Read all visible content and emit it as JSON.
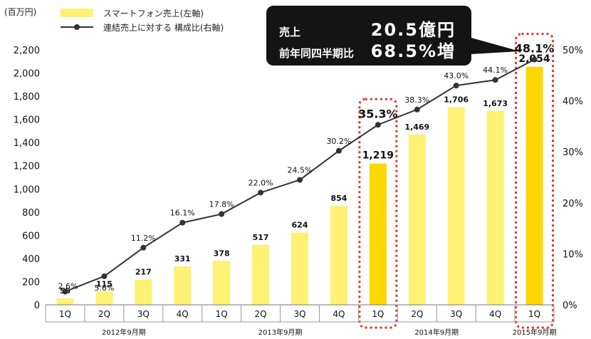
{
  "unit_label": "(百万円)",
  "legend": {
    "bar_label": "スマートフォン売上(左軸)",
    "line_label": "連結売上に対する 構成比(右軸)"
  },
  "callout": {
    "row1_label": "売上",
    "row1_value": "20.5億円",
    "row2_label": "前年同四半期比",
    "row2_value": "68.5%増"
  },
  "colors": {
    "bar": "#fff173",
    "bar_highlight": "#ffd700",
    "line": "#333333",
    "highlight_border": "#e0342a",
    "callout_bg": "#141414"
  },
  "chart_data": {
    "type": "bar",
    "categories": [
      "1Q",
      "2Q",
      "3Q",
      "4Q",
      "1Q",
      "2Q",
      "3Q",
      "4Q",
      "1Q",
      "2Q",
      "3Q",
      "4Q",
      "1Q"
    ],
    "groups": [
      {
        "label": "2012年9月期",
        "start": 0,
        "end": 3
      },
      {
        "label": "2013年9月期",
        "start": 4,
        "end": 7
      },
      {
        "label": "2014年9月期",
        "start": 8,
        "end": 11
      },
      {
        "label": "2015年9月期",
        "start": 12,
        "end": 12
      }
    ],
    "series": [
      {
        "name": "スマートフォン売上(左軸)",
        "type": "bar",
        "axis": "left",
        "values": [
          55,
          115,
          217,
          331,
          378,
          517,
          624,
          854,
          1219,
          1469,
          1706,
          1673,
          2054
        ],
        "labels": [
          "55",
          "115",
          "217",
          "331",
          "378",
          "517",
          "624",
          "854",
          "1,219",
          "1,469",
          "1,706",
          "1,673",
          "2,054"
        ]
      },
      {
        "name": "連結売上に対する 構成比(右軸)",
        "type": "line",
        "axis": "right",
        "values": [
          2.6,
          5.6,
          11.2,
          16.1,
          17.8,
          22.0,
          24.5,
          30.2,
          35.3,
          38.3,
          43.0,
          44.1,
          48.1
        ],
        "labels": [
          "2.6%",
          "5.6%",
          "11.2%",
          "16.1%",
          "17.8%",
          "22.0%",
          "24.5%",
          "30.2%",
          "35.3%",
          "38.3%",
          "43.0%",
          "44.1%",
          "48.1%"
        ]
      }
    ],
    "highlight_indices": [
      8,
      12
    ],
    "y_left": {
      "min": 0,
      "max": 2200,
      "ticks": [
        0,
        200,
        400,
        600,
        800,
        1000,
        1200,
        1400,
        1600,
        1800,
        2000,
        2200
      ],
      "tick_labels": [
        "0",
        "200",
        "400",
        "600",
        "800",
        "1,000",
        "1,200",
        "1,400",
        "1,600",
        "1,800",
        "2,000",
        "2,200"
      ]
    },
    "y_right": {
      "min": 0,
      "max": 50,
      "ticks": [
        0,
        10,
        20,
        30,
        40,
        50
      ],
      "tick_labels": [
        "0%",
        "10%",
        "20%",
        "30%",
        "40%",
        "50%"
      ]
    }
  }
}
